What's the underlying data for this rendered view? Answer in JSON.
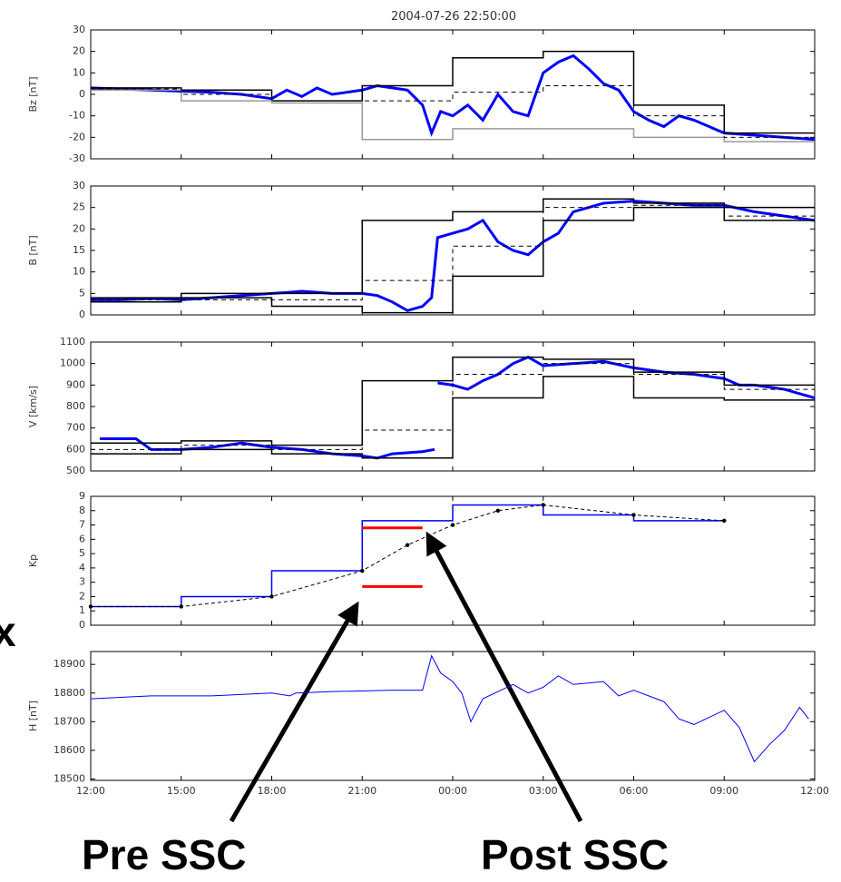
{
  "annotations": [
    "x",
    "Pre SSC",
    "Post SSC"
  ],
  "chart_data": [
    {
      "type": "line",
      "title": "2004-07-26 22:50:00",
      "ylabel": "Bz [nT]",
      "xlim": [
        0,
        24
      ],
      "ylim": [
        -30,
        30
      ],
      "yticks": [
        -30,
        -20,
        -10,
        0,
        10,
        20,
        30
      ],
      "series": [
        {
          "color": "#0000ff",
          "style": "thick",
          "x": [
            0,
            1,
            2,
            3,
            4,
            5,
            6,
            6.5,
            7,
            7.5,
            8,
            8.5,
            9,
            9.5,
            10,
            10.5,
            11,
            11.3,
            11.6,
            12,
            12.5,
            13,
            13.5,
            14,
            14.5,
            15,
            15.5,
            16,
            16.5,
            17,
            17.5,
            18,
            18.5,
            19,
            19.5,
            20,
            20.5,
            21,
            22,
            23,
            24
          ],
          "values": [
            3,
            2.5,
            2,
            1.5,
            1,
            0,
            -2,
            2,
            -1,
            3,
            0,
            1,
            2,
            4,
            3,
            2,
            -5,
            -18,
            -8,
            -10,
            -5,
            -12,
            0,
            -8,
            -10,
            10,
            15,
            18,
            12,
            5,
            2,
            -8,
            -12,
            -15,
            -10,
            -12,
            -15,
            -18,
            -19,
            -20,
            -21
          ]
        },
        {
          "color": "#000000",
          "style": "step",
          "x": [
            0,
            3,
            6,
            9,
            12,
            15,
            18,
            21,
            24
          ],
          "values": [
            3,
            2,
            -3,
            4,
            17,
            20,
            -5,
            -18,
            -18
          ]
        },
        {
          "color": "#999999",
          "style": "step",
          "x": [
            0,
            3,
            6,
            9,
            12,
            15,
            18,
            21,
            24
          ],
          "values": [
            2,
            -3,
            -4,
            -21,
            -16,
            -16,
            -20,
            -22,
            -22
          ]
        },
        {
          "color": "#000000",
          "style": "dashed-step",
          "x": [
            0,
            3,
            6,
            9,
            12,
            15,
            18,
            21,
            24
          ],
          "values": [
            2.5,
            0,
            -3,
            -3,
            1,
            4,
            -10,
            -20,
            -20
          ]
        }
      ]
    },
    {
      "type": "line",
      "ylabel": "B [nT]",
      "xlim": [
        0,
        24
      ],
      "ylim": [
        0,
        30
      ],
      "yticks": [
        0,
        5,
        10,
        15,
        20,
        25,
        30
      ],
      "series": [
        {
          "color": "#0000ff",
          "style": "thick",
          "x": [
            0,
            1,
            2,
            3,
            4,
            5,
            6,
            6.5,
            7,
            8,
            9,
            9.5,
            10,
            10.5,
            11,
            11.3,
            11.5,
            12,
            12.5,
            13,
            13.5,
            14,
            14.5,
            15,
            15.5,
            16,
            17,
            18,
            19,
            20,
            21,
            22,
            23,
            24
          ],
          "values": [
            3.5,
            3.5,
            3.8,
            3.5,
            4,
            4.5,
            5,
            5.2,
            5.5,
            5,
            5,
            4.5,
            3,
            1,
            2,
            4,
            18,
            19,
            20,
            22,
            17,
            15,
            14,
            17,
            19,
            24,
            26,
            26.5,
            26,
            25.5,
            25.5,
            24,
            23,
            22
          ]
        },
        {
          "color": "#000000",
          "style": "step",
          "x": [
            0,
            3,
            6,
            9,
            12,
            15,
            18,
            21,
            24
          ],
          "values": [
            4,
            5,
            5,
            22,
            24,
            27,
            26,
            25,
            25
          ]
        },
        {
          "color": "#000000",
          "style": "step",
          "x": [
            0,
            3,
            6,
            9,
            12,
            15,
            18,
            21,
            24
          ],
          "values": [
            3,
            4,
            2,
            0.5,
            9,
            22,
            25,
            22,
            22
          ]
        },
        {
          "color": "#000000",
          "style": "dashed-step",
          "x": [
            0,
            3,
            6,
            9,
            12,
            15,
            18,
            21,
            24
          ],
          "values": [
            3.5,
            3.5,
            3.5,
            8,
            16,
            25,
            25.5,
            23,
            23
          ]
        }
      ]
    },
    {
      "type": "line",
      "ylabel": "V [km/s]",
      "xlim": [
        0,
        24
      ],
      "ylim": [
        500,
        1100
      ],
      "yticks": [
        500,
        600,
        700,
        800,
        900,
        1000,
        1100
      ],
      "series": [
        {
          "color": "#0000ff",
          "style": "thick",
          "x": [
            0.3,
            1.5,
            2,
            3,
            4,
            5,
            6,
            7,
            8,
            9,
            9.5,
            10,
            11,
            11.4,
            11.45,
            11.5,
            12,
            12.5,
            13,
            13.5,
            14,
            14.5,
            15,
            16,
            17,
            18,
            19,
            20,
            21,
            21.5,
            22,
            23,
            24
          ],
          "values": [
            650,
            650,
            600,
            600,
            610,
            630,
            610,
            600,
            580,
            570,
            560,
            580,
            590,
            600,
            null,
            910,
            900,
            880,
            920,
            950,
            1000,
            1030,
            990,
            1000,
            1010,
            980,
            960,
            950,
            930,
            900,
            900,
            880,
            840
          ]
        },
        {
          "color": "#000000",
          "style": "step",
          "x": [
            0,
            3,
            6,
            9,
            12,
            15,
            18,
            21,
            24
          ],
          "values": [
            630,
            640,
            620,
            920,
            1030,
            1020,
            960,
            900,
            900
          ]
        },
        {
          "color": "#000000",
          "style": "step",
          "x": [
            0,
            3,
            6,
            9,
            12,
            15,
            18,
            21,
            24
          ],
          "values": [
            580,
            600,
            580,
            560,
            840,
            940,
            840,
            830,
            830
          ]
        },
        {
          "color": "#000000",
          "style": "dashed-step",
          "x": [
            0,
            3,
            6,
            9,
            12,
            15,
            18,
            21,
            24
          ],
          "values": [
            600,
            620,
            600,
            690,
            950,
            1000,
            950,
            880,
            880
          ]
        }
      ]
    },
    {
      "type": "line",
      "ylabel": "Kp",
      "xlim": [
        0,
        24
      ],
      "ylim": [
        0,
        9
      ],
      "yticks": [
        0,
        1,
        2,
        3,
        4,
        5,
        6,
        7,
        8,
        9
      ],
      "series": [
        {
          "color": "#0000ff",
          "style": "step",
          "x": [
            0,
            3,
            6,
            9,
            12,
            15,
            18,
            21
          ],
          "values": [
            1.3,
            2.0,
            3.8,
            7.3,
            8.4,
            7.7,
            7.3,
            7.3
          ]
        },
        {
          "color": "#000000",
          "style": "dashed-markers",
          "x": [
            0,
            3,
            6,
            9,
            10.5,
            12,
            13.5,
            15,
            18,
            21
          ],
          "values": [
            1.3,
            1.3,
            2.0,
            3.8,
            5.6,
            7.0,
            8.0,
            8.4,
            7.7,
            7.3
          ]
        },
        {
          "color": "#ff0000",
          "style": "thick",
          "x": [
            9,
            11
          ],
          "values": [
            6.8,
            6.8
          ]
        },
        {
          "color": "#ff0000",
          "style": "thick",
          "x": [
            9,
            11
          ],
          "values": [
            2.7,
            2.7
          ]
        }
      ]
    },
    {
      "type": "line",
      "ylabel": "H [nT]",
      "xlim": [
        0,
        24
      ],
      "ylim": [
        18495,
        18945
      ],
      "yticks": [
        18500,
        18600,
        18700,
        18800,
        18900
      ],
      "xticks": [
        {
          "value": 0,
          "label": "12:00"
        },
        {
          "value": 3,
          "label": "15:00"
        },
        {
          "value": 6,
          "label": "18:00"
        },
        {
          "value": 9,
          "label": "21:00"
        },
        {
          "value": 12,
          "label": "00:00"
        },
        {
          "value": 15,
          "label": "03:00"
        },
        {
          "value": 18,
          "label": "06:00"
        },
        {
          "value": 21,
          "label": "09:00"
        },
        {
          "value": 24,
          "label": "12:00"
        }
      ],
      "series": [
        {
          "color": "#0000ff",
          "style": "thin",
          "x": [
            0,
            2,
            4,
            6,
            6.6,
            6.8,
            8,
            10,
            11,
            11.3,
            11.6,
            12,
            12.3,
            12.6,
            13,
            14,
            14.5,
            15,
            15.5,
            16,
            17,
            17.5,
            18,
            19,
            19.5,
            20,
            21,
            21.5,
            22,
            22.5,
            23,
            23.5,
            23.8
          ],
          "values": [
            18780,
            18790,
            18790,
            18800,
            18790,
            18800,
            18805,
            18810,
            18810,
            18930,
            18870,
            18840,
            18800,
            18700,
            18780,
            18830,
            18800,
            18820,
            18860,
            18830,
            18840,
            18790,
            18810,
            18770,
            18710,
            18690,
            18740,
            18680,
            18560,
            18620,
            18670,
            18750,
            18710
          ]
        }
      ]
    }
  ]
}
